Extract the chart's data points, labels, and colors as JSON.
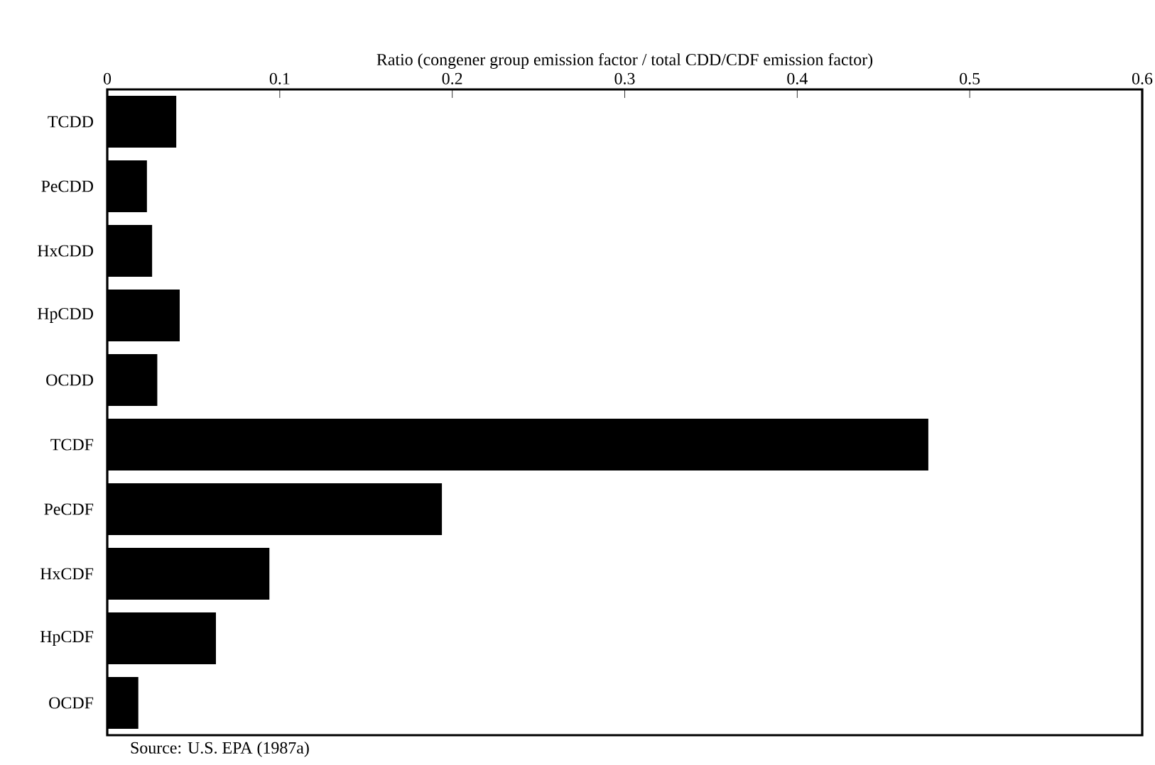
{
  "chart_data": {
    "type": "bar",
    "orientation": "horizontal",
    "xlabel": "Ratio (congener group emission factor / total CDD/CDF emission factor)",
    "categories": [
      "TCDD",
      "PeCDD",
      "HxCDD",
      "HpCDD",
      "OCDD",
      "TCDF",
      "PeCDF",
      "HxCDF",
      "HpCDF",
      "OCDF"
    ],
    "values": [
      0.04,
      0.023,
      0.026,
      0.042,
      0.029,
      0.476,
      0.194,
      0.094,
      0.063,
      0.018
    ],
    "color": "#000000",
    "xlim": [
      0,
      0.6
    ],
    "xticks": [
      0,
      0.1,
      0.2,
      0.3,
      0.4,
      0.5,
      0.6
    ],
    "grid": false,
    "annotations": [
      "Source: U.S. EPA (1987a)"
    ]
  }
}
